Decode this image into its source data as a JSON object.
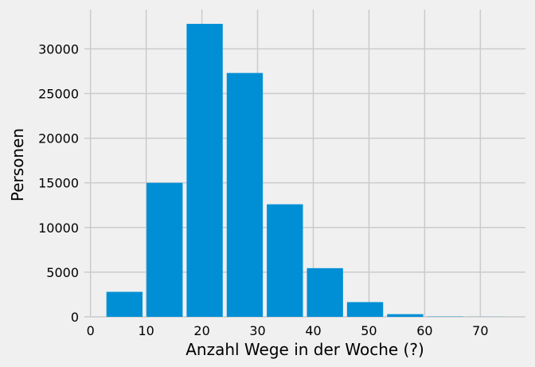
{
  "chart_data": {
    "type": "bar",
    "bin_edges": [
      2.5,
      9.7,
      16.9,
      24.1,
      31.3,
      38.5,
      45.7,
      52.9,
      60.1,
      67.3,
      74.5
    ],
    "values": [
      2800,
      15000,
      32800,
      27300,
      12600,
      5450,
      1650,
      300,
      30,
      10
    ],
    "xlabel": "Anzahl Wege in der Woche (?)",
    "ylabel": "Personen",
    "xlim": [
      -1.1,
      78.1
    ],
    "ylim": [
      0,
      34400
    ],
    "xticks": [
      0,
      10,
      20,
      30,
      40,
      50,
      60,
      70
    ],
    "yticks": [
      0,
      5000,
      10000,
      15000,
      20000,
      25000,
      30000
    ],
    "grid": true,
    "colors": {
      "bar": "#008fd5",
      "background": "#f0f0f0",
      "grid": "#cbcbcb"
    }
  }
}
